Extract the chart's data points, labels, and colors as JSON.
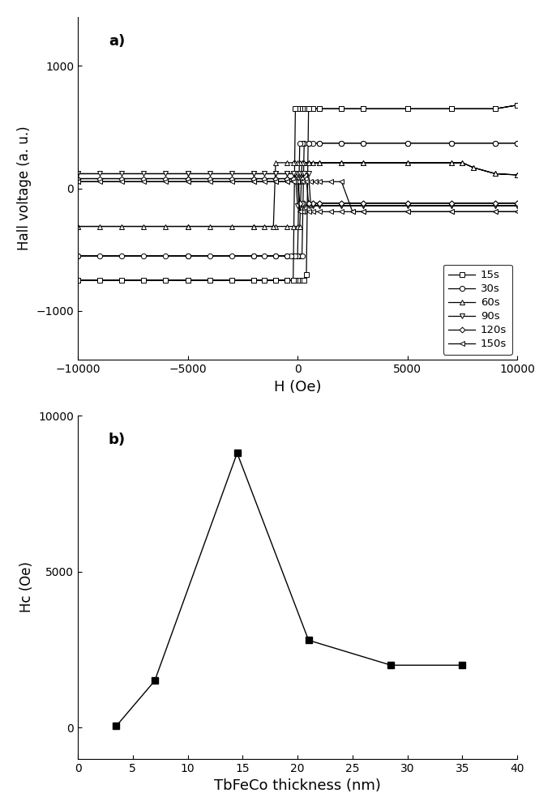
{
  "panel_a": {
    "title": "a)",
    "xlabel": "H (Oe)",
    "ylabel": "Hall voltage (a. u.)",
    "xlim": [
      -10000,
      10000
    ],
    "ylim": [
      -1400,
      1400
    ],
    "yticks": [
      -1000,
      0,
      1000
    ],
    "xticks": [
      -10000,
      -5000,
      0,
      5000,
      10000
    ],
    "series": {
      "15s": {
        "marker": "s",
        "loop": [
          [
            -10000,
            -750
          ],
          [
            -9000,
            -750
          ],
          [
            -8000,
            -750
          ],
          [
            -7000,
            -750
          ],
          [
            -6000,
            -750
          ],
          [
            -5000,
            -750
          ],
          [
            -4000,
            -750
          ],
          [
            -3000,
            -750
          ],
          [
            -2000,
            -750
          ],
          [
            -1500,
            -750
          ],
          [
            -1000,
            -750
          ],
          [
            -500,
            -750
          ],
          [
            -200,
            -750
          ],
          [
            -100,
            -750
          ],
          [
            0,
            -750
          ],
          [
            100,
            -750
          ],
          [
            200,
            -750
          ],
          [
            300,
            -750
          ],
          [
            400,
            -700
          ],
          [
            500,
            650
          ],
          [
            700,
            650
          ],
          [
            1000,
            650
          ],
          [
            2000,
            650
          ],
          [
            3000,
            650
          ],
          [
            5000,
            650
          ],
          [
            7000,
            650
          ],
          [
            9000,
            650
          ],
          [
            10000,
            680
          ],
          [
            10000,
            680
          ],
          [
            9000,
            650
          ],
          [
            7000,
            650
          ],
          [
            5000,
            650
          ],
          [
            3000,
            650
          ],
          [
            2000,
            650
          ],
          [
            1000,
            650
          ],
          [
            500,
            650
          ],
          [
            300,
            650
          ],
          [
            200,
            650
          ],
          [
            100,
            650
          ],
          [
            0,
            650
          ],
          [
            -100,
            650
          ],
          [
            -200,
            -750
          ],
          [
            -500,
            -750
          ],
          [
            -1000,
            -750
          ],
          [
            -2000,
            -750
          ],
          [
            -5000,
            -750
          ],
          [
            -10000,
            -750
          ]
        ]
      },
      "30s": {
        "marker": "o",
        "loop": [
          [
            -10000,
            -550
          ],
          [
            -9000,
            -550
          ],
          [
            -8000,
            -550
          ],
          [
            -7000,
            -550
          ],
          [
            -6000,
            -550
          ],
          [
            -5000,
            -550
          ],
          [
            -4000,
            -550
          ],
          [
            -3000,
            -550
          ],
          [
            -2000,
            -550
          ],
          [
            -1500,
            -550
          ],
          [
            -1000,
            -550
          ],
          [
            -500,
            -550
          ],
          [
            -200,
            -550
          ],
          [
            0,
            -550
          ],
          [
            100,
            -550
          ],
          [
            200,
            -550
          ],
          [
            300,
            370
          ],
          [
            500,
            370
          ],
          [
            700,
            370
          ],
          [
            1000,
            370
          ],
          [
            2000,
            370
          ],
          [
            3000,
            370
          ],
          [
            5000,
            370
          ],
          [
            7000,
            370
          ],
          [
            9000,
            370
          ],
          [
            10000,
            370
          ],
          [
            10000,
            370
          ],
          [
            9000,
            370
          ],
          [
            7000,
            370
          ],
          [
            5000,
            370
          ],
          [
            3000,
            370
          ],
          [
            2000,
            370
          ],
          [
            1000,
            370
          ],
          [
            500,
            370
          ],
          [
            300,
            370
          ],
          [
            200,
            370
          ],
          [
            100,
            370
          ],
          [
            0,
            -550
          ],
          [
            -100,
            -550
          ],
          [
            -300,
            -550
          ],
          [
            -500,
            -550
          ],
          [
            -1000,
            -550
          ],
          [
            -2000,
            -550
          ],
          [
            -5000,
            -550
          ],
          [
            -10000,
            -550
          ]
        ]
      },
      "60s": {
        "marker": "^",
        "loop": [
          [
            -10000,
            -310
          ],
          [
            -9000,
            -310
          ],
          [
            -8000,
            -310
          ],
          [
            -7000,
            -310
          ],
          [
            -6000,
            -310
          ],
          [
            -5000,
            -310
          ],
          [
            -4000,
            -310
          ],
          [
            -3000,
            -310
          ],
          [
            -2000,
            -310
          ],
          [
            -1500,
            -310
          ],
          [
            -1000,
            -310
          ],
          [
            -500,
            -310
          ],
          [
            -200,
            -310
          ],
          [
            0,
            -310
          ],
          [
            100,
            -310
          ],
          [
            200,
            210
          ],
          [
            500,
            210
          ],
          [
            700,
            210
          ],
          [
            1000,
            210
          ],
          [
            2000,
            210
          ],
          [
            3000,
            210
          ],
          [
            5000,
            210
          ],
          [
            7000,
            210
          ],
          [
            7500,
            210
          ],
          [
            8000,
            170
          ],
          [
            9000,
            120
          ],
          [
            10000,
            110
          ],
          [
            10000,
            110
          ],
          [
            9000,
            120
          ],
          [
            8000,
            170
          ],
          [
            7500,
            210
          ],
          [
            7000,
            210
          ],
          [
            5000,
            210
          ],
          [
            3000,
            210
          ],
          [
            2000,
            210
          ],
          [
            1000,
            210
          ],
          [
            500,
            210
          ],
          [
            300,
            210
          ],
          [
            200,
            210
          ],
          [
            100,
            210
          ],
          [
            0,
            210
          ],
          [
            -100,
            210
          ],
          [
            -200,
            210
          ],
          [
            -500,
            210
          ],
          [
            -1000,
            210
          ],
          [
            -1100,
            -310
          ],
          [
            -2000,
            -310
          ],
          [
            -5000,
            -310
          ],
          [
            -10000,
            -310
          ]
        ]
      },
      "90s": {
        "marker": "v",
        "loop": [
          [
            -10000,
            120
          ],
          [
            -9000,
            120
          ],
          [
            -8000,
            120
          ],
          [
            -7000,
            120
          ],
          [
            -6000,
            120
          ],
          [
            -5000,
            120
          ],
          [
            -4000,
            120
          ],
          [
            -3000,
            120
          ],
          [
            -2000,
            120
          ],
          [
            -1500,
            120
          ],
          [
            -1000,
            120
          ],
          [
            -500,
            120
          ],
          [
            -200,
            120
          ],
          [
            0,
            120
          ],
          [
            100,
            120
          ],
          [
            200,
            120
          ],
          [
            300,
            120
          ],
          [
            500,
            120
          ],
          [
            600,
            -140
          ],
          [
            700,
            -140
          ],
          [
            1000,
            -140
          ],
          [
            2000,
            -140
          ],
          [
            3000,
            -140
          ],
          [
            5000,
            -140
          ],
          [
            7000,
            -140
          ],
          [
            9000,
            -140
          ],
          [
            10000,
            -140
          ],
          [
            10000,
            -140
          ],
          [
            9000,
            -140
          ],
          [
            7000,
            -140
          ],
          [
            5000,
            -140
          ],
          [
            3000,
            -140
          ],
          [
            2000,
            -140
          ],
          [
            1000,
            -140
          ],
          [
            700,
            -140
          ],
          [
            500,
            -140
          ],
          [
            300,
            -140
          ],
          [
            200,
            -140
          ],
          [
            100,
            -140
          ],
          [
            0,
            -140
          ],
          [
            -100,
            120
          ],
          [
            -200,
            120
          ],
          [
            -500,
            120
          ],
          [
            -1000,
            120
          ],
          [
            -2000,
            120
          ],
          [
            -5000,
            120
          ],
          [
            -10000,
            120
          ]
        ]
      },
      "120s": {
        "marker": "D",
        "loop": [
          [
            -10000,
            80
          ],
          [
            -9000,
            80
          ],
          [
            -8000,
            80
          ],
          [
            -7000,
            80
          ],
          [
            -6000,
            80
          ],
          [
            -5000,
            80
          ],
          [
            -4000,
            80
          ],
          [
            -3000,
            80
          ],
          [
            -2000,
            80
          ],
          [
            -1500,
            80
          ],
          [
            -1000,
            80
          ],
          [
            -500,
            80
          ],
          [
            -200,
            80
          ],
          [
            0,
            80
          ],
          [
            100,
            80
          ],
          [
            200,
            80
          ],
          [
            400,
            80
          ],
          [
            500,
            -120
          ],
          [
            700,
            -120
          ],
          [
            1000,
            -120
          ],
          [
            2000,
            -120
          ],
          [
            3000,
            -120
          ],
          [
            5000,
            -120
          ],
          [
            7000,
            -120
          ],
          [
            9000,
            -120
          ],
          [
            10000,
            -120
          ],
          [
            10000,
            -120
          ],
          [
            9000,
            -120
          ],
          [
            7000,
            -120
          ],
          [
            5000,
            -120
          ],
          [
            3000,
            -120
          ],
          [
            2000,
            -120
          ],
          [
            1000,
            -120
          ],
          [
            700,
            -120
          ],
          [
            500,
            -120
          ],
          [
            300,
            -120
          ],
          [
            200,
            -120
          ],
          [
            100,
            -120
          ],
          [
            0,
            80
          ],
          [
            -100,
            80
          ],
          [
            -200,
            80
          ],
          [
            -500,
            80
          ],
          [
            -1000,
            80
          ],
          [
            -2000,
            80
          ],
          [
            -5000,
            80
          ],
          [
            -10000,
            80
          ]
        ]
      },
      "150s": {
        "marker": "<",
        "loop": [
          [
            -10000,
            55
          ],
          [
            -9000,
            55
          ],
          [
            -8000,
            55
          ],
          [
            -7000,
            55
          ],
          [
            -6000,
            55
          ],
          [
            -5000,
            55
          ],
          [
            -4000,
            55
          ],
          [
            -3000,
            55
          ],
          [
            -2000,
            55
          ],
          [
            -1500,
            55
          ],
          [
            -1000,
            55
          ],
          [
            -500,
            55
          ],
          [
            -200,
            55
          ],
          [
            0,
            55
          ],
          [
            100,
            55
          ],
          [
            200,
            55
          ],
          [
            400,
            55
          ],
          [
            600,
            55
          ],
          [
            800,
            55
          ],
          [
            1000,
            55
          ],
          [
            1500,
            55
          ],
          [
            2000,
            55
          ],
          [
            2500,
            -190
          ],
          [
            3000,
            -190
          ],
          [
            5000,
            -190
          ],
          [
            7000,
            -190
          ],
          [
            9000,
            -190
          ],
          [
            10000,
            -190
          ],
          [
            10000,
            -190
          ],
          [
            9000,
            -190
          ],
          [
            7000,
            -190
          ],
          [
            5000,
            -190
          ],
          [
            3000,
            -190
          ],
          [
            2500,
            -190
          ],
          [
            2000,
            -190
          ],
          [
            1500,
            -190
          ],
          [
            1000,
            -190
          ],
          [
            700,
            -190
          ],
          [
            500,
            -190
          ],
          [
            300,
            -190
          ],
          [
            200,
            -190
          ],
          [
            100,
            -190
          ],
          [
            0,
            55
          ],
          [
            -100,
            55
          ],
          [
            -200,
            55
          ],
          [
            -500,
            55
          ],
          [
            -1000,
            55
          ],
          [
            -2000,
            55
          ],
          [
            -5000,
            55
          ],
          [
            -10000,
            55
          ]
        ]
      }
    }
  },
  "panel_b": {
    "title": "b)",
    "xlabel": "TbFeCo thickness (nm)",
    "ylabel": "Hc (Oe)",
    "xlim": [
      0,
      40
    ],
    "ylim": [
      -1000,
      10000
    ],
    "xticks": [
      0,
      5,
      10,
      15,
      20,
      25,
      30,
      35,
      40
    ],
    "yticks": [
      0,
      5000,
      10000
    ],
    "x": [
      3.5,
      7,
      14.5,
      21,
      28.5,
      35
    ],
    "y": [
      50,
      1500,
      8800,
      2800,
      2000,
      2000
    ]
  }
}
